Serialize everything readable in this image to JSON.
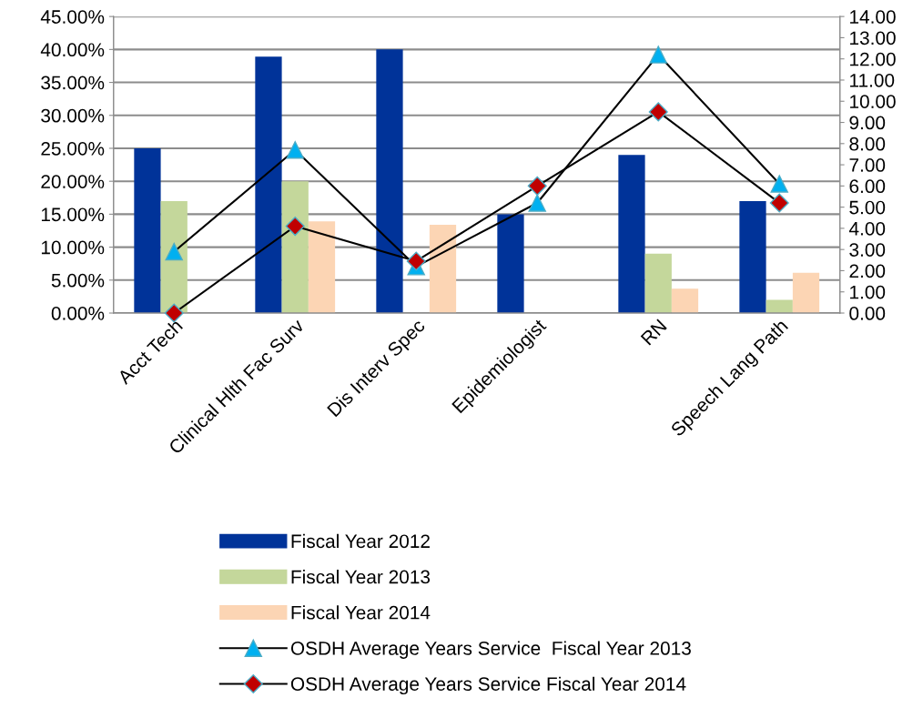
{
  "chart_data": {
    "type": "bar",
    "categories": [
      "Acct Tech",
      "Clinical Hlth Fac Surv",
      "Dis Interv Spec",
      "Epidemiologist",
      "RN",
      "Speech Lang Path"
    ],
    "series": [
      {
        "name": "Fiscal Year 2012",
        "color": "#003399",
        "values": [
          25.0,
          38.9,
          40.0,
          15.0,
          24.0,
          17.0
        ]
      },
      {
        "name": "Fiscal Year 2013",
        "color": "#c4d79b",
        "values": [
          17.0,
          20.0,
          null,
          null,
          9.0,
          2.0
        ]
      },
      {
        "name": "Fiscal Year 2014",
        "color": "#fcd5b4",
        "values": [
          null,
          13.9,
          13.4,
          null,
          3.7,
          6.1
        ]
      },
      {
        "name": "OSDH Average Years Service  Fiscal Year 2013",
        "type": "line",
        "axis": "y2",
        "color": "#000000",
        "marker": "triangle",
        "values": [
          2.9,
          7.7,
          2.2,
          5.2,
          12.2,
          6.1
        ]
      },
      {
        "name": "OSDH Average Years Service Fiscal Year 2014",
        "type": "line",
        "axis": "y2",
        "color": "#000000",
        "marker": "diamond",
        "values": [
          0.0,
          4.1,
          2.45,
          6.0,
          9.5,
          5.2
        ]
      }
    ],
    "ylim": [
      0,
      45
    ],
    "yticks": [
      {
        "value": 0,
        "label": "0.00%"
      },
      {
        "value": 5,
        "label": "5.00%"
      },
      {
        "value": 10,
        "label": "10.00%"
      },
      {
        "value": 15,
        "label": "15.00%"
      },
      {
        "value": 20,
        "label": "20.00%"
      },
      {
        "value": 25,
        "label": "25.00%"
      },
      {
        "value": 30,
        "label": "30.00%"
      },
      {
        "value": 35,
        "label": "35.00%"
      },
      {
        "value": 40,
        "label": "40.00%"
      },
      {
        "value": 45,
        "label": "45.00%"
      }
    ],
    "y2lim": [
      0,
      14
    ],
    "y2ticks": [
      {
        "value": 0,
        "label": "0.00"
      },
      {
        "value": 1,
        "label": "1.00"
      },
      {
        "value": 2,
        "label": "2.00"
      },
      {
        "value": 3,
        "label": "3.00"
      },
      {
        "value": 4,
        "label": "4.00"
      },
      {
        "value": 5,
        "label": "5.00"
      },
      {
        "value": 6,
        "label": "6.00"
      },
      {
        "value": 7,
        "label": "7.00"
      },
      {
        "value": 8,
        "label": "8.00"
      },
      {
        "value": 9,
        "label": "9.00"
      },
      {
        "value": 10,
        "label": "10.00"
      },
      {
        "value": 11,
        "label": "11.00"
      },
      {
        "value": 12,
        "label": "12.00"
      },
      {
        "value": 13,
        "label": "13.00"
      },
      {
        "value": 14,
        "label": "14.00"
      }
    ],
    "grid": "y",
    "legend": "bottom"
  }
}
